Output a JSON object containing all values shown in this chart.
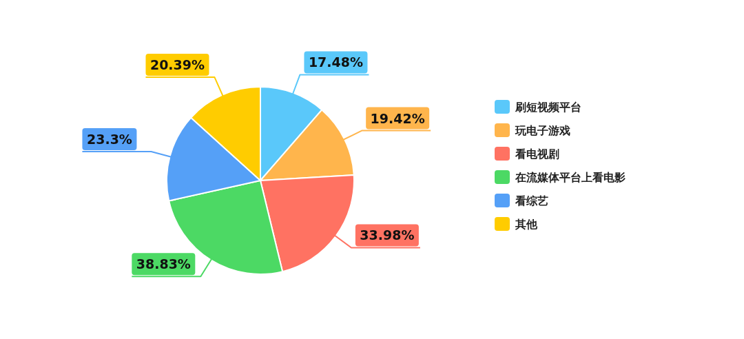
{
  "chart_data": {
    "type": "pie",
    "categories": [
      "刷短视频平台",
      "玩电子游戏",
      "看电视剧",
      "在流媒体平台上看电影",
      "看综艺",
      "其他"
    ],
    "values": [
      17.48,
      19.42,
      33.98,
      38.83,
      23.3,
      20.39
    ],
    "colors": [
      "#5ac8fa",
      "#ffb54c",
      "#ff7262",
      "#4cd964",
      "#55a0f7",
      "#ffcc00"
    ],
    "value_labels": [
      "17.48%",
      "19.42%",
      "33.98%",
      "38.83%",
      "23.3%",
      "20.39%"
    ],
    "legend": "right"
  }
}
